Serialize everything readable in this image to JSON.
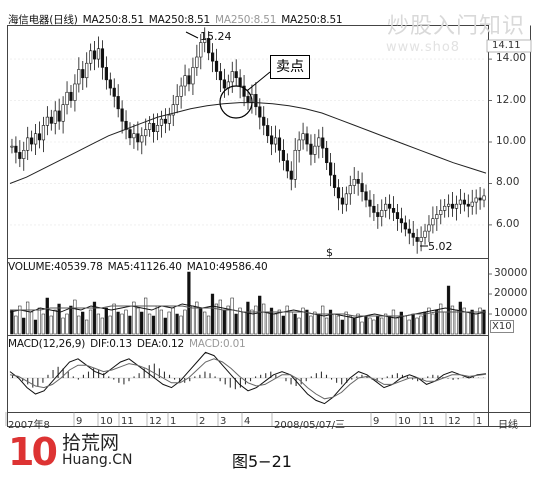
{
  "watermark": "炒股入门知识",
  "watermark_url": "www.sho8",
  "price_legend": {
    "name": "海信电器(日线)",
    "items": [
      "MA250:8.51",
      "MA250:8.51",
      "MA250:8.51",
      "MA250:8.51"
    ]
  },
  "volume_legend": {
    "items": [
      "VOLUME:40539.78",
      "MA5:41126.40",
      "MA10:49586.40"
    ]
  },
  "macd_legend": {
    "items": [
      "MACD(12,26,9)",
      "DIF:0.13",
      "DEA:0.12",
      "MACD:0.01"
    ]
  },
  "annotations": {
    "sell_label": "卖点",
    "high_label": "15.24",
    "low_label": "5.02",
    "dollar_marker": "$",
    "current_price": "14.11"
  },
  "footer": {
    "brand_number": "10",
    "brand_cn": "拾荒网",
    "brand_en": "Huang.CN",
    "figure_caption": "图5−21"
  },
  "chart_data": [
    {
      "type": "line",
      "panel": "price",
      "ylim": [
        4.5,
        15.5
      ],
      "yticks": [
        "14.00",
        "12.00",
        "10.00",
        "8.00",
        "6.00"
      ],
      "yticks_values": [
        14,
        12,
        10,
        8,
        6
      ],
      "x_ticks": [
        "2007年8",
        "9",
        "10",
        "11",
        "12",
        "1",
        "2",
        "3",
        "4",
        "2008/05/07/三",
        "9",
        "10",
        "11",
        "12",
        "1",
        "日线"
      ],
      "series": [
        {
          "name": "Price",
          "values": [
            9.8,
            9.5,
            9.2,
            9.6,
            10.2,
            9.9,
            10.4,
            10.1,
            10.8,
            11.2,
            10.9,
            11.5,
            11.0,
            11.8,
            12.4,
            12.0,
            12.8,
            13.5,
            13.1,
            13.8,
            14.4,
            14.0,
            14.5,
            13.6,
            13.0,
            12.6,
            12.2,
            11.6,
            11.0,
            10.6,
            10.2,
            10.4,
            10.0,
            10.3,
            10.6,
            10.9,
            10.5,
            10.8,
            11.1,
            10.9,
            11.3,
            11.8,
            12.2,
            12.7,
            13.2,
            12.8,
            13.6,
            14.1,
            14.8,
            15.0,
            14.3,
            13.9,
            13.4,
            13.0,
            12.6,
            12.9,
            13.4,
            13.1,
            12.7,
            12.2,
            11.9,
            12.3,
            11.7,
            11.2,
            10.8,
            10.3,
            9.9,
            10.2,
            9.6,
            9.1,
            8.6,
            8.2,
            9.6,
            10.1,
            10.4,
            9.9,
            9.4,
            9.8,
            10.2,
            9.7,
            9.0,
            8.4,
            7.8,
            7.3,
            7.0,
            7.5,
            7.9,
            8.2,
            8.0,
            7.6,
            7.2,
            6.9,
            6.6,
            6.4,
            6.7,
            7.0,
            6.8,
            6.6,
            6.3,
            6.1,
            5.8,
            5.6,
            5.4,
            5.2,
            5.4,
            5.7,
            6.0,
            6.3,
            6.5,
            6.7,
            6.9,
            7.0,
            6.8,
            7.0,
            7.2,
            7.0,
            6.9,
            7.1,
            7.3,
            7.2,
            7.4
          ]
        },
        {
          "name": "MA250",
          "values": [
            8.0,
            8.3,
            8.7,
            9.1,
            9.5,
            9.9,
            10.3,
            10.6,
            10.9,
            11.2,
            11.4,
            11.6,
            11.75,
            11.85,
            11.9,
            11.9,
            11.85,
            11.75,
            11.6,
            11.4,
            11.1,
            10.8,
            10.5,
            10.2,
            9.9,
            9.6,
            9.3,
            9.0,
            8.75,
            8.5
          ]
        }
      ]
    },
    {
      "type": "bar",
      "panel": "volume",
      "ylim": [
        0,
        34000
      ],
      "yticks": [
        "30000",
        "20000",
        "10000"
      ],
      "yticks_values": [
        30000,
        20000,
        10000
      ],
      "multiplier_label": "X10",
      "series": [
        {
          "name": "VOLUME",
          "values": [
            12,
            9,
            14,
            8,
            16,
            11,
            7,
            13,
            10,
            18,
            9,
            12,
            15,
            8,
            10,
            14,
            17,
            9,
            11,
            7,
            12,
            16,
            10,
            8,
            13,
            9,
            15,
            11,
            10,
            12,
            9,
            16,
            13,
            11,
            18,
            10,
            9,
            14,
            12,
            8,
            11,
            13,
            10,
            9,
            12,
            31,
            14,
            16,
            13,
            11,
            9,
            20,
            15,
            17,
            12,
            14,
            18,
            10,
            13,
            11,
            16,
            12,
            14,
            19,
            15,
            11,
            13,
            10,
            12,
            9,
            14,
            11,
            10,
            8,
            13,
            12,
            9,
            11,
            10,
            14,
            8,
            12,
            10,
            9,
            7,
            11,
            9,
            8,
            10,
            6,
            9,
            8,
            7,
            9,
            8,
            10,
            9,
            12,
            8,
            11,
            9,
            7,
            10,
            8,
            9,
            11,
            13,
            10,
            12,
            15,
            11,
            24,
            14,
            12,
            16,
            13,
            11,
            12,
            10,
            13,
            12
          ]
        },
        {
          "name": "MA5",
          "values": [
            11,
            12,
            11,
            13,
            12,
            11,
            13,
            12,
            14,
            13,
            12,
            13,
            14,
            13,
            12,
            14,
            13,
            15,
            14,
            13,
            14,
            13,
            12,
            11,
            10,
            11,
            10,
            11,
            12,
            11,
            10,
            9,
            10,
            9,
            8,
            9,
            10,
            9,
            8,
            9,
            10,
            11,
            12,
            13,
            12,
            11,
            10,
            11
          ]
        },
        {
          "name": "MA10",
          "values": [
            12,
            12,
            12,
            12,
            13,
            13,
            13,
            13,
            13,
            13,
            14,
            14,
            14,
            14,
            14,
            14,
            14,
            14,
            13,
            13,
            13,
            12,
            12,
            11,
            11,
            11,
            11,
            11,
            11,
            11,
            10,
            10,
            10,
            10,
            9,
            9,
            9,
            9,
            9,
            9,
            10,
            10,
            11,
            11,
            11,
            11,
            11,
            11
          ]
        }
      ]
    },
    {
      "type": "bar",
      "panel": "macd",
      "ylim": [
        -1.0,
        1.0
      ],
      "series": [
        {
          "name": "MACD",
          "values": [
            0.1,
            0.05,
            -0.1,
            -0.2,
            -0.3,
            -0.25,
            -0.15,
            0.1,
            0.25,
            0.35,
            0.3,
            0.2,
            0.05,
            -0.05,
            0.1,
            0.2,
            0.3,
            0.25,
            0.15,
            0.05,
            -0.05,
            -0.15,
            -0.2,
            -0.1,
            0.05,
            0.15,
            0.3,
            0.4,
            0.45,
            0.3,
            0.2,
            0.1,
            -0.05,
            -0.1,
            -0.15,
            -0.1,
            0.05,
            0.1,
            0.2,
            0.15,
            0.05,
            -0.1,
            -0.2,
            -0.3,
            -0.35,
            -0.3,
            -0.2,
            -0.1,
            0.05,
            0.1,
            0.15,
            0.2,
            0.1,
            0.0,
            -0.1,
            -0.2,
            -0.25,
            -0.2,
            -0.1,
            0.05,
            0.15,
            0.2,
            0.1,
            -0.05,
            -0.15,
            -0.2,
            -0.15,
            -0.05,
            0.05,
            0.1,
            0.05,
            -0.05,
            -0.1,
            -0.05,
            0.05,
            0.1,
            0.15,
            0.1,
            0.05,
            -0.05,
            -0.1,
            -0.05,
            0.05,
            0.1,
            0.08,
            0.03,
            -0.02,
            -0.06,
            -0.04,
            0.02,
            0.05,
            0.03,
            0.01,
            0.01
          ]
        },
        {
          "name": "DIF",
          "values": [
            0.2,
            0.0,
            -0.3,
            -0.5,
            -0.4,
            -0.1,
            0.2,
            0.5,
            0.6,
            0.4,
            0.2,
            0.1,
            0.3,
            0.5,
            0.6,
            0.4,
            0.2,
            0.0,
            -0.2,
            -0.3,
            -0.1,
            0.2,
            0.5,
            0.8,
            0.7,
            0.4,
            0.1,
            -0.2,
            -0.4,
            -0.3,
            -0.1,
            0.1,
            0.2,
            0.1,
            -0.2,
            -0.5,
            -0.7,
            -0.8,
            -0.6,
            -0.3,
            0.0,
            0.2,
            0.1,
            -0.1,
            -0.3,
            -0.2,
            0.0,
            0.1,
            0.0,
            -0.2,
            -0.1,
            0.1,
            0.2,
            0.1,
            0.0,
            0.1,
            0.13
          ]
        },
        {
          "name": "DEA",
          "values": [
            0.1,
            0.05,
            -0.1,
            -0.25,
            -0.3,
            -0.2,
            0.0,
            0.25,
            0.4,
            0.4,
            0.3,
            0.2,
            0.25,
            0.35,
            0.45,
            0.4,
            0.3,
            0.15,
            0.0,
            -0.15,
            -0.15,
            0.0,
            0.25,
            0.5,
            0.6,
            0.5,
            0.3,
            0.05,
            -0.15,
            -0.25,
            -0.2,
            -0.05,
            0.1,
            0.1,
            -0.05,
            -0.3,
            -0.5,
            -0.65,
            -0.6,
            -0.45,
            -0.2,
            0.0,
            0.05,
            -0.05,
            -0.2,
            -0.2,
            -0.1,
            0.0,
            0.0,
            -0.1,
            -0.1,
            0.0,
            0.1,
            0.1,
            0.05,
            0.08,
            0.12
          ]
        }
      ]
    }
  ]
}
